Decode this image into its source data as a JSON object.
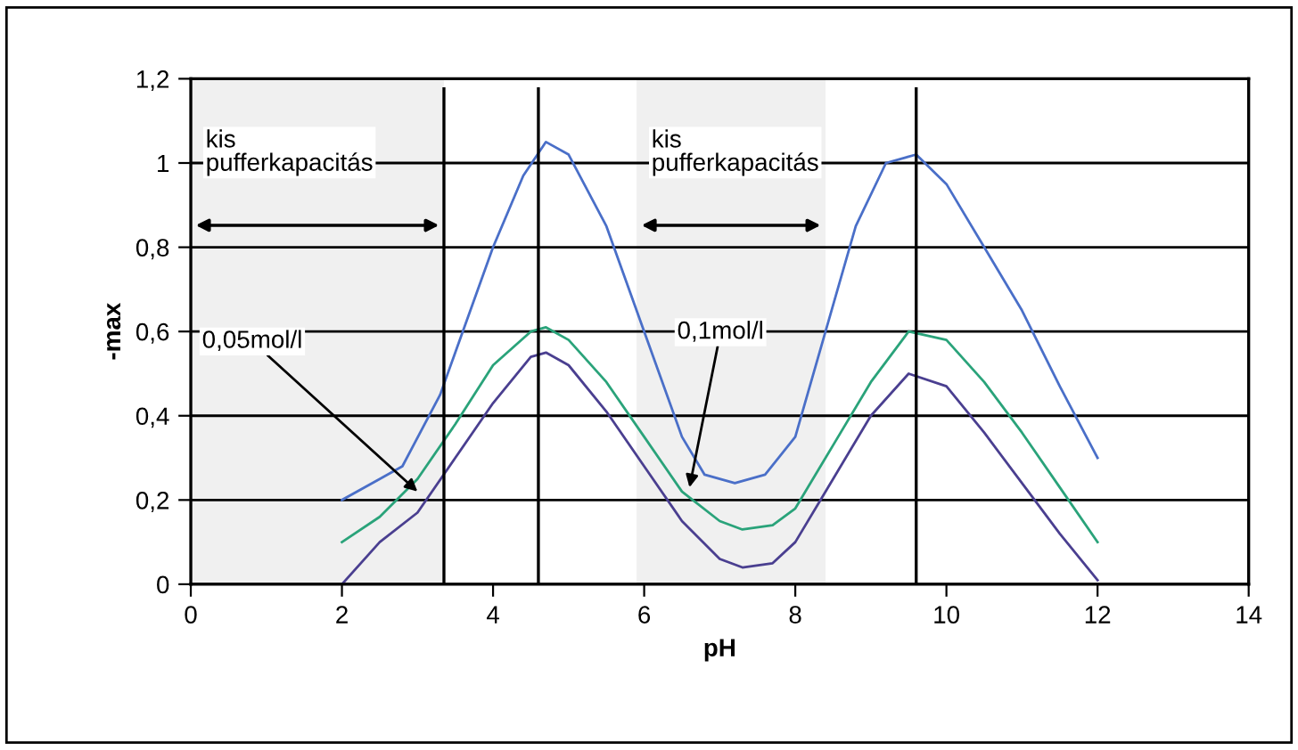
{
  "chart_data": {
    "type": "line",
    "xlabel": "pH",
    "ylabel": "-max",
    "xlim": [
      0,
      14
    ],
    "xticks": [
      0,
      2,
      4,
      6,
      8,
      10,
      12,
      14
    ],
    "ylim": [
      0,
      1.2
    ],
    "yticks": [
      0,
      {
        "value": 0.2,
        "label": "0,2"
      },
      {
        "value": 0.4,
        "label": "0,4"
      },
      {
        "value": 0.6,
        "label": "0,6"
      },
      {
        "value": 0.8,
        "label": "0,8"
      },
      1,
      {
        "value": 1.2,
        "label": "1,2"
      }
    ],
    "grid": "y",
    "legend": false,
    "marker": "none",
    "line_style": "solid",
    "series": [
      {
        "color": "#4a6fc8",
        "x": [
          2,
          2.5,
          2.8,
          3.3,
          3.5,
          4,
          4.4,
          4.7,
          5,
          5.5,
          6,
          6.5,
          6.8,
          7.2,
          7.6,
          8,
          8.4,
          8.8,
          9.2,
          9.6,
          10,
          10.5,
          11,
          11.5,
          12
        ],
        "values": [
          0.2,
          0.25,
          0.28,
          0.45,
          0.55,
          0.8,
          0.97,
          1.05,
          1.02,
          0.85,
          0.6,
          0.35,
          0.26,
          0.24,
          0.26,
          0.35,
          0.6,
          0.85,
          1.0,
          1.02,
          0.95,
          0.8,
          0.65,
          0.47,
          0.3
        ]
      },
      {
        "color": "#2aa37a",
        "x": [
          2,
          2.5,
          3,
          3.5,
          4,
          4.5,
          4.7,
          5,
          5.5,
          6,
          6.5,
          7,
          7.3,
          7.7,
          8,
          8.5,
          9,
          9.5,
          10,
          10.5,
          11,
          11.5,
          12
        ],
        "values": [
          0.1,
          0.16,
          0.25,
          0.38,
          0.52,
          0.6,
          0.61,
          0.58,
          0.48,
          0.35,
          0.22,
          0.15,
          0.13,
          0.14,
          0.18,
          0.33,
          0.48,
          0.6,
          0.58,
          0.48,
          0.36,
          0.23,
          0.1
        ]
      },
      {
        "color": "#4a3f90",
        "x": [
          2,
          2.5,
          3,
          3.5,
          4,
          4.5,
          4.7,
          5,
          5.5,
          6,
          6.5,
          7,
          7.3,
          7.7,
          8,
          8.5,
          9,
          9.5,
          10,
          10.5,
          11,
          11.5,
          12
        ],
        "values": [
          0,
          0.1,
          0.17,
          0.3,
          0.43,
          0.54,
          0.55,
          0.52,
          0.41,
          0.28,
          0.15,
          0.06,
          0.04,
          0.05,
          0.1,
          0.25,
          0.4,
          0.5,
          0.47,
          0.36,
          0.24,
          0.12,
          0.01
        ]
      }
    ],
    "ref_lines": [
      {
        "axis": "x",
        "value": 3.35,
        "color": "#000000"
      },
      {
        "axis": "x",
        "value": 4.6,
        "color": "#000000"
      },
      {
        "axis": "x",
        "value": 9.6,
        "color": "#000000"
      }
    ],
    "bands": [
      {
        "axis": "x",
        "from": 0,
        "to": 3.35,
        "label": "kis\npufferkapacitás",
        "color": "#f0f0f0"
      },
      {
        "axis": "x",
        "from": 5.9,
        "to": 8.4,
        "label": "kis\npufferkapacitás",
        "color": "#f0f0f0"
      }
    ],
    "annotations": [
      {
        "text": "0,05mol/l",
        "x": 3.0,
        "y": 0.22
      },
      {
        "text": "0,1mol/l",
        "x": 6.6,
        "y": 0.23
      }
    ]
  }
}
